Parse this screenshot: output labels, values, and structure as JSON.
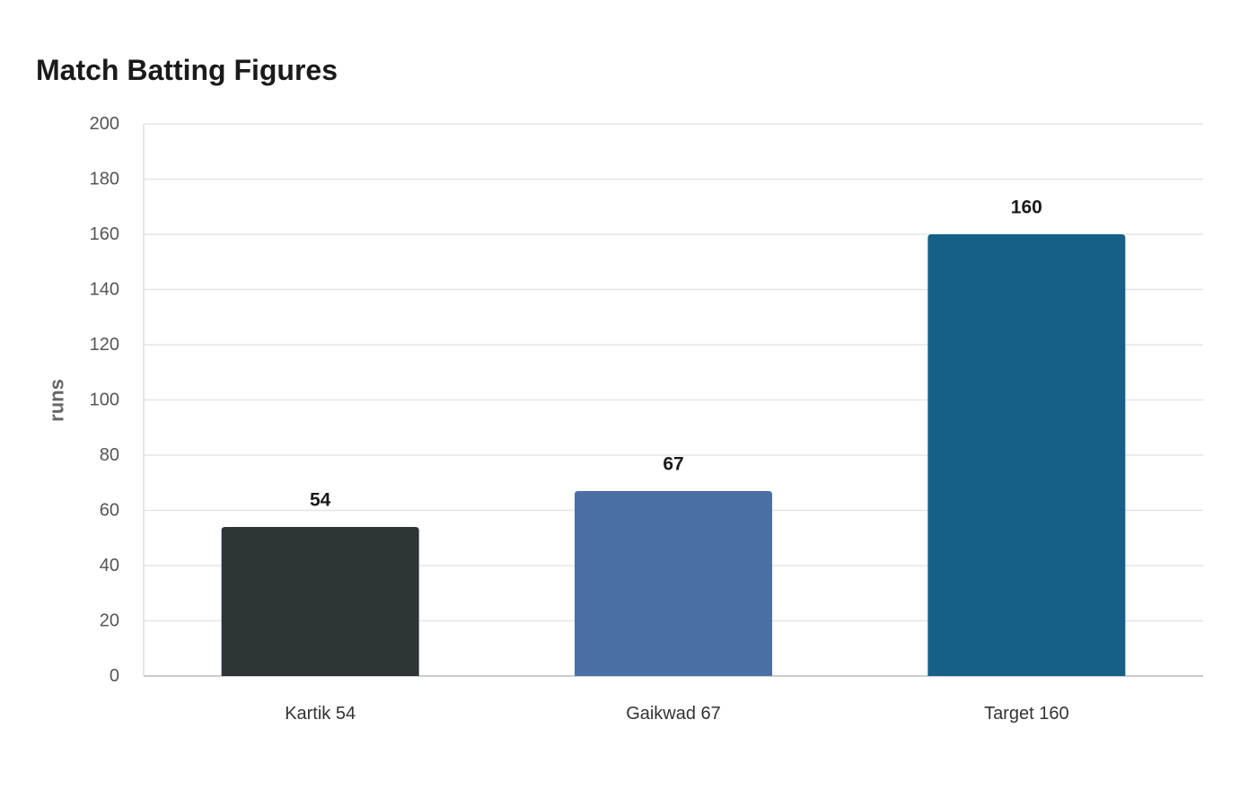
{
  "chart_data": {
    "type": "bar",
    "title": "Match Batting Figures",
    "xlabel": "",
    "ylabel": "runs",
    "categories": [
      "Kartik 54",
      "Gaikwad 67",
      "Target 160"
    ],
    "values": [
      54,
      67,
      160
    ],
    "data_labels": [
      "54",
      "67",
      "160"
    ],
    "colors": [
      "#2d3436",
      "#4a6fa5",
      "#166088"
    ],
    "ylim": [
      0,
      200
    ],
    "yticks": [
      0,
      20,
      40,
      60,
      80,
      100,
      120,
      140,
      160,
      180,
      200
    ],
    "ytick_labels": [
      "0",
      "20",
      "40",
      "60",
      "80",
      "100",
      "120",
      "140",
      "160",
      "180",
      "200"
    ],
    "grid": true,
    "legend": "none"
  }
}
